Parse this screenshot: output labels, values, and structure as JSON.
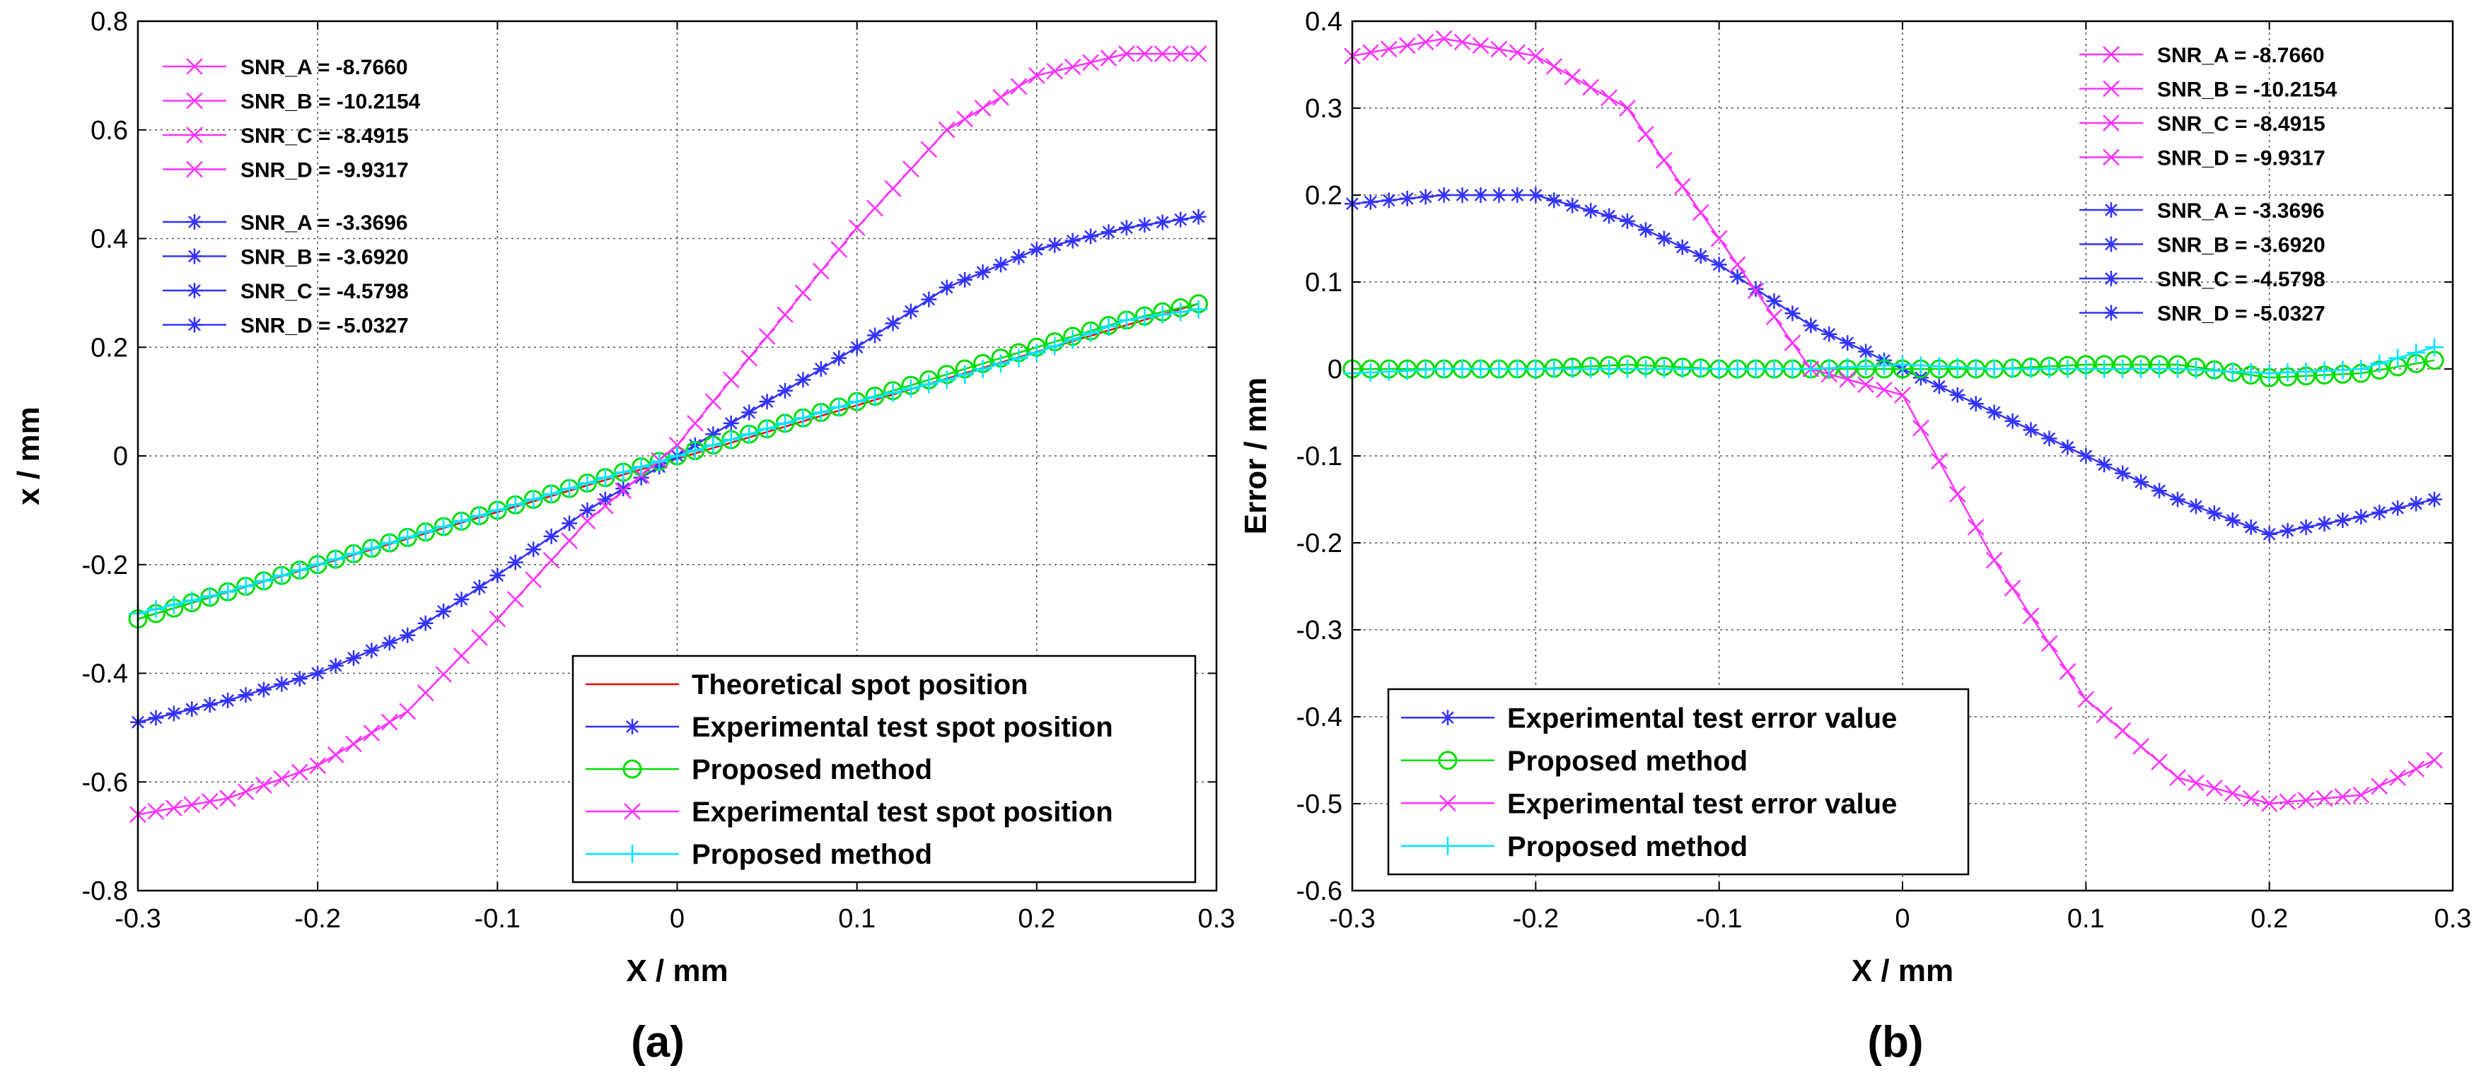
{
  "chart_data": [
    {
      "panel": "(a)",
      "type": "line",
      "xlabel": "X / mm",
      "ylabel": "x / mm",
      "xlim": [
        -0.3,
        0.3
      ],
      "ylim": [
        -0.8,
        0.8
      ],
      "xticks": [
        "-0.3",
        "-0.2",
        "-0.1",
        "0",
        "0.1",
        "0.2",
        "0.3"
      ],
      "yticks": [
        "-0.8",
        "-0.6",
        "-0.4",
        "-0.2",
        "0",
        "0.2",
        "0.4",
        "0.6",
        "0.8"
      ],
      "grid": true,
      "snr_groups": [
        {
          "color": "#ff33ff",
          "marker": "x",
          "entries": [
            "SNR_A = -8.7660",
            "SNR_B = -10.2154",
            "SNR_C = -8.4915",
            "SNR_D = -9.9317"
          ]
        },
        {
          "color": "#3333ff",
          "marker": "*",
          "entries": [
            "SNR_A = -3.3696",
            "SNR_B = -3.6920",
            "SNR_C = -4.5798",
            "SNR_D = -5.0327"
          ]
        }
      ],
      "legend_position": "bottom-right",
      "series": [
        {
          "name": "Theoretical spot position",
          "color": "#ff0000",
          "marker": "none",
          "x": [
            -0.3,
            0.29
          ],
          "y": [
            -0.3,
            0.28
          ]
        },
        {
          "name": "Experimental test spot position",
          "color": "#3333ff",
          "marker": "*",
          "x": [
            -0.3,
            -0.25,
            -0.2,
            -0.15,
            -0.1,
            -0.05,
            0,
            0.05,
            0.1,
            0.15,
            0.2,
            0.25,
            0.29
          ],
          "y": [
            -0.49,
            -0.45,
            -0.4,
            -0.33,
            -0.22,
            -0.1,
            0,
            0.1,
            0.2,
            0.31,
            0.38,
            0.42,
            0.44
          ]
        },
        {
          "name": "Proposed method",
          "color": "#00dd00",
          "marker": "o",
          "x": [
            -0.3,
            -0.25,
            -0.2,
            -0.15,
            -0.1,
            -0.05,
            0,
            0.05,
            0.1,
            0.15,
            0.2,
            0.25,
            0.29
          ],
          "y": [
            -0.3,
            -0.25,
            -0.2,
            -0.15,
            -0.1,
            -0.05,
            0,
            0.05,
            0.1,
            0.15,
            0.2,
            0.25,
            0.28
          ]
        },
        {
          "name": "Experimental test spot position",
          "color": "#ff33ff",
          "marker": "x",
          "x": [
            -0.3,
            -0.25,
            -0.2,
            -0.15,
            -0.1,
            -0.05,
            0,
            0.05,
            0.1,
            0.15,
            0.2,
            0.25,
            0.29
          ],
          "y": [
            -0.66,
            -0.63,
            -0.57,
            -0.47,
            -0.3,
            -0.12,
            0.02,
            0.22,
            0.42,
            0.6,
            0.7,
            0.74,
            0.74
          ]
        },
        {
          "name": "Proposed method",
          "color": "#00e5ff",
          "marker": "+",
          "x": [
            -0.3,
            -0.25,
            -0.2,
            -0.15,
            -0.1,
            -0.05,
            0,
            0.05,
            0.1,
            0.15,
            0.2,
            0.25,
            0.29
          ],
          "y": [
            -0.29,
            -0.25,
            -0.2,
            -0.15,
            -0.1,
            -0.05,
            0,
            0.05,
            0.1,
            0.14,
            0.19,
            0.25,
            0.27
          ]
        }
      ]
    },
    {
      "panel": "(b)",
      "type": "line",
      "xlabel": "X / mm",
      "ylabel": "Error / mm",
      "xlim": [
        -0.3,
        0.3
      ],
      "ylim": [
        -0.6,
        0.4
      ],
      "xticks": [
        "-0.3",
        "-0.2",
        "-0.1",
        "0",
        "0.1",
        "0.2",
        "0.3"
      ],
      "yticks": [
        "-0.6",
        "-0.5",
        "-0.4",
        "-0.3",
        "-0.2",
        "-0.1",
        "0",
        "0.1",
        "0.2",
        "0.3",
        "0.4"
      ],
      "grid": true,
      "snr_groups": [
        {
          "color": "#ff33ff",
          "marker": "x",
          "entries": [
            "SNR_A = -8.7660",
            "SNR_B = -10.2154",
            "SNR_C = -8.4915",
            "SNR_D = -9.9317"
          ]
        },
        {
          "color": "#3333ff",
          "marker": "*",
          "entries": [
            "SNR_A = -3.3696",
            "SNR_B = -3.6920",
            "SNR_C = -4.5798",
            "SNR_D = -5.0327"
          ]
        }
      ],
      "legend_position": "bottom-left",
      "series": [
        {
          "name": "Experimental test error value",
          "color": "#3333ff",
          "marker": "*",
          "x": [
            -0.3,
            -0.25,
            -0.2,
            -0.15,
            -0.1,
            -0.05,
            0,
            0.05,
            0.1,
            0.15,
            0.2,
            0.25,
            0.29
          ],
          "y": [
            0.19,
            0.2,
            0.2,
            0.17,
            0.12,
            0.05,
            0,
            -0.05,
            -0.1,
            -0.15,
            -0.19,
            -0.17,
            -0.15
          ]
        },
        {
          "name": "Proposed method",
          "color": "#00dd00",
          "marker": "o",
          "x": [
            -0.3,
            -0.25,
            -0.2,
            -0.15,
            -0.1,
            -0.05,
            0,
            0.05,
            0.1,
            0.15,
            0.2,
            0.25,
            0.29
          ],
          "y": [
            0.0,
            0.0,
            0.0,
            0.005,
            0.0,
            0.0,
            0.0,
            0.0,
            0.005,
            0.005,
            -0.01,
            -0.005,
            0.01
          ]
        },
        {
          "name": "Experimental test error value",
          "color": "#ff33ff",
          "marker": "x",
          "x": [
            -0.3,
            -0.25,
            -0.2,
            -0.15,
            -0.1,
            -0.05,
            0,
            0.05,
            0.1,
            0.15,
            0.2,
            0.25,
            0.29
          ],
          "y": [
            0.36,
            0.38,
            0.36,
            0.3,
            0.15,
            0.0,
            -0.03,
            -0.22,
            -0.38,
            -0.47,
            -0.5,
            -0.49,
            -0.45
          ]
        },
        {
          "name": "Proposed method",
          "color": "#00e5ff",
          "marker": "+",
          "x": [
            -0.3,
            -0.25,
            -0.2,
            -0.15,
            -0.1,
            -0.05,
            0,
            0.05,
            0.1,
            0.15,
            0.2,
            0.25,
            0.29
          ],
          "y": [
            -0.005,
            0.0,
            0.0,
            0.0,
            0.0,
            0.0,
            0.005,
            0.0,
            0.0,
            0.0,
            -0.005,
            0.0,
            0.025
          ]
        }
      ]
    }
  ]
}
